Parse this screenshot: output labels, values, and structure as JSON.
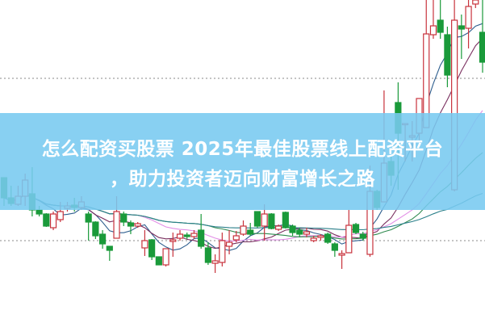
{
  "title": {
    "line1": "怎么配资买股票 2025年最佳股票线上配资平台",
    "line2": "，助力投资者迈向财富增长之路"
  },
  "colors": {
    "up": "#c8323c",
    "down": "#1a9a3a",
    "banner": "#78caf0",
    "reference_line": "#888888",
    "ma": [
      "#2f5f8f",
      "#7a2f5f",
      "#e28ee6",
      "#2f8a4f",
      "#2a7f8a"
    ]
  },
  "chart_data": {
    "type": "candlestick",
    "title": "",
    "xlabel": "",
    "ylabel": "",
    "ylim": [
      0,
      20
    ],
    "grid": false,
    "reference_levels": [
      15.15,
      5.1
    ],
    "moving_averages": [
      5,
      10,
      20,
      30,
      60
    ],
    "candles": [
      [
        9.0,
        9.0,
        7.25,
        7.75
      ],
      [
        7.75,
        8.5,
        7.25,
        7.4
      ],
      [
        7.35,
        8.5,
        7.25,
        7.85
      ],
      [
        7.85,
        9.25,
        7.25,
        8.85
      ],
      [
        8.0,
        9.65,
        6.6,
        7.0
      ],
      [
        7.0,
        7.25,
        6.6,
        6.75
      ],
      [
        6.75,
        6.8,
        5.95,
        6.0
      ],
      [
        5.9,
        6.9,
        5.75,
        6.75
      ],
      [
        6.4,
        7.5,
        6.25,
        6.9
      ],
      [
        7.1,
        7.5,
        6.9,
        7.25
      ],
      [
        7.3,
        7.75,
        6.9,
        7.15
      ],
      [
        7.15,
        7.85,
        7.0,
        7.5
      ],
      [
        6.75,
        6.9,
        5.1,
        6.25
      ],
      [
        6.25,
        6.3,
        5.2,
        5.4
      ],
      [
        5.5,
        5.75,
        4.6,
        4.9
      ],
      [
        4.75,
        4.75,
        3.85,
        4.5
      ],
      [
        5.25,
        7.85,
        5.25,
        6.9
      ],
      [
        6.75,
        6.9,
        6.0,
        6.25
      ],
      [
        6.2,
        6.35,
        5.5,
        6.0
      ],
      [
        6.0,
        6.25,
        5.9,
        6.15
      ],
      [
        4.65,
        5.75,
        4.15,
        5.1
      ],
      [
        5.15,
        5.2,
        3.9,
        4.1
      ],
      [
        4.1,
        4.1,
        3.6,
        3.6
      ],
      [
        3.6,
        4.6,
        3.5,
        4.6
      ],
      [
        5.05,
        5.6,
        4.1,
        5.15
      ],
      [
        5.25,
        5.75,
        5.1,
        5.5
      ],
      [
        5.45,
        5.6,
        5.2,
        5.35
      ],
      [
        5.35,
        5.75,
        5.2,
        5.55
      ],
      [
        5.75,
        6.75,
        4.6,
        4.75
      ],
      [
        4.65,
        5.0,
        3.6,
        3.75
      ],
      [
        3.7,
        4.25,
        3.1,
        3.85
      ],
      [
        3.75,
        5.6,
        3.5,
        5.1
      ],
      [
        4.75,
        5.75,
        4.25,
        5.0
      ],
      [
        5.15,
        5.7,
        5.0,
        5.4
      ],
      [
        5.5,
        6.35,
        5.4,
        6.0
      ],
      [
        5.75,
        6.2,
        5.4,
        5.5
      ],
      [
        6.9,
        6.9,
        5.9,
        6.0
      ],
      [
        6.0,
        7.35,
        5.1,
        6.75
      ],
      [
        6.75,
        6.8,
        5.8,
        5.85
      ],
      [
        5.8,
        6.1,
        5.7,
        6.0
      ],
      [
        6.85,
        6.9,
        5.85,
        5.9
      ],
      [
        6.0,
        6.1,
        5.4,
        5.6
      ],
      [
        5.75,
        5.9,
        5.3,
        5.5
      ],
      [
        5.5,
        5.9,
        5.3,
        5.65
      ],
      [
        5.1,
        5.4,
        5.0,
        5.25
      ],
      [
        5.3,
        5.5,
        5.1,
        5.4
      ],
      [
        5.5,
        5.6,
        4.9,
        5.0
      ],
      [
        4.9,
        5.0,
        4.1,
        4.5
      ],
      [
        4.2,
        4.5,
        3.35,
        4.3
      ],
      [
        4.35,
        7.0,
        4.35,
        6.05
      ],
      [
        6.1,
        6.2,
        5.5,
        5.6
      ],
      [
        5.5,
        5.65,
        5.1,
        5.25
      ],
      [
        4.25,
        9.75,
        4.1,
        8.15
      ],
      [
        8.15,
        8.25,
        7.0,
        7.15
      ],
      [
        7.5,
        14.4,
        7.5,
        9.9
      ],
      [
        10.0,
        10.35,
        8.5,
        9.15
      ],
      [
        13.65,
        14.9,
        8.25,
        11.75
      ],
      [
        12.3,
        12.35,
        10.0,
        12.35
      ],
      [
        11.5,
        12.5,
        10.0,
        11.6
      ],
      [
        11.75,
        13.9,
        11.25,
        13.9
      ],
      [
        12.1,
        20,
        12.1,
        17.9
      ],
      [
        17.85,
        20,
        17.6,
        18.4
      ],
      [
        18.75,
        20,
        17.6,
        18.0
      ],
      [
        17.85,
        18.35,
        14.6,
        15.35
      ],
      [
        8.25,
        20,
        8.15,
        18.75
      ],
      [
        18.4,
        19.1,
        16.35,
        18.2
      ],
      [
        18.25,
        20,
        17.0,
        19.6
      ],
      [
        19.75,
        20,
        19.5,
        20
      ],
      [
        18.0,
        20,
        15.5,
        16.15
      ]
    ]
  }
}
